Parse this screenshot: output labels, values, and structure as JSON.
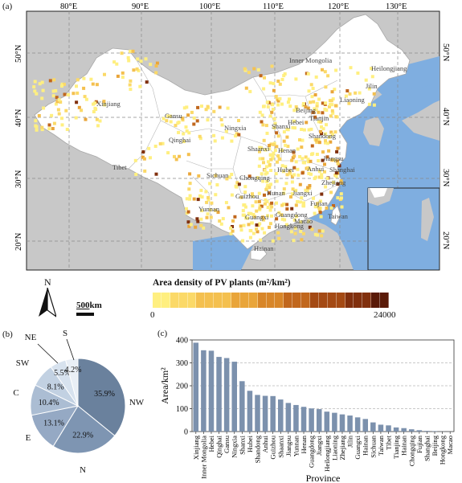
{
  "panels": {
    "a": "(a)",
    "b": "(b)",
    "c": "(c)"
  },
  "map": {
    "lon_labels": [
      "80°E",
      "90°E",
      "100°E",
      "110°E",
      "120°E",
      "130°E"
    ],
    "lat_labels": [
      "50°N",
      "40°N",
      "30°N",
      "20°N"
    ],
    "province_labels": [
      "Heilongjiang",
      "Inner Mongolia",
      "Jilin",
      "Liaoning",
      "Beijing",
      "Tianjin",
      "Hebei",
      "Shanxi",
      "Shandong",
      "Xinjiang",
      "Gansu",
      "Ningxia",
      "Qinghai",
      "Shaanxi",
      "Henan",
      "Jiangsu",
      "Anhui",
      "Shanghai",
      "Hubei",
      "Tibet",
      "Sichuan",
      "Chongqing",
      "Zhejiang",
      "Guizhou",
      "Hunan",
      "Jiangxi",
      "Fujian",
      "Yunnan",
      "Guangxi",
      "Guangdong",
      "Taiwan",
      "Hongkong",
      "Macao",
      "Hainan"
    ],
    "north_label": "N",
    "scale_value": "500",
    "scale_unit": "km",
    "colors": {
      "land": "#c8c8c8",
      "china": "#ffffff",
      "sea": "#7faee0",
      "border": "#9a9a9a"
    }
  },
  "legend": {
    "title": "Area density of PV plants (m²/km²)",
    "min_label": "0",
    "max_label": "24000",
    "colors": [
      "#ffef80",
      "#fbd968",
      "#f4c04f",
      "#e9a53a",
      "#d88629",
      "#c1671d",
      "#a44a14",
      "#81300e",
      "#5a1a08"
    ]
  },
  "pie": {
    "segments": [
      {
        "label": "NW",
        "pct": "35.9%",
        "value": 35.9,
        "color": "#6a819d"
      },
      {
        "label": "N",
        "pct": "22.9%",
        "value": 22.9,
        "color": "#7e95b2"
      },
      {
        "label": "E",
        "pct": "13.1%",
        "value": 13.1,
        "color": "#95a9c4"
      },
      {
        "label": "C",
        "pct": "10.4%",
        "value": 10.4,
        "color": "#abbdd3"
      },
      {
        "label": "SW",
        "pct": "8.1%",
        "value": 8.1,
        "color": "#c2d1e2"
      },
      {
        "label": "NE",
        "pct": "5.5%",
        "value": 5.5,
        "color": "#d7e2ee"
      },
      {
        "label": "S",
        "pct": "4.2%",
        "value": 4.2,
        "color": "#e9eff6"
      }
    ]
  },
  "chart_data": {
    "type": "bar",
    "ylabel": "Area/km²",
    "xlabel": "Province",
    "ylim": [
      0,
      400
    ],
    "yticks": [
      0,
      100,
      200,
      300,
      400
    ],
    "grid": "horizontal dashed",
    "bar_color": "#7c91ad",
    "categories": [
      "Xinjiang",
      "Inner Mongolia",
      "Hebei",
      "Qinghai",
      "Gansu",
      "Ningxia",
      "Shanxi",
      "Hubei",
      "Shandong",
      "Anhui",
      "Guizhou",
      "Shaanxi",
      "Jiangsu",
      "Yunnan",
      "Henan",
      "Guangdong",
      "Jiangxi",
      "Heilongjiang",
      "Liaoning",
      "Zhejiang",
      "Jilin",
      "Guangxi",
      "Hainan",
      "Sichuan",
      "Taiwan",
      "Tibet",
      "Tianjing",
      "Hainan",
      "Chongqing",
      "Fujian",
      "Shanghai",
      "Beijing",
      "Hongkong",
      "Macao"
    ],
    "values": [
      388,
      355,
      353,
      326,
      321,
      305,
      220,
      178,
      160,
      156,
      155,
      140,
      125,
      116,
      108,
      101,
      98,
      87,
      82,
      75,
      70,
      62,
      55,
      40,
      30,
      27,
      18,
      15,
      10,
      6,
      3,
      2,
      0.5,
      0.3
    ]
  }
}
